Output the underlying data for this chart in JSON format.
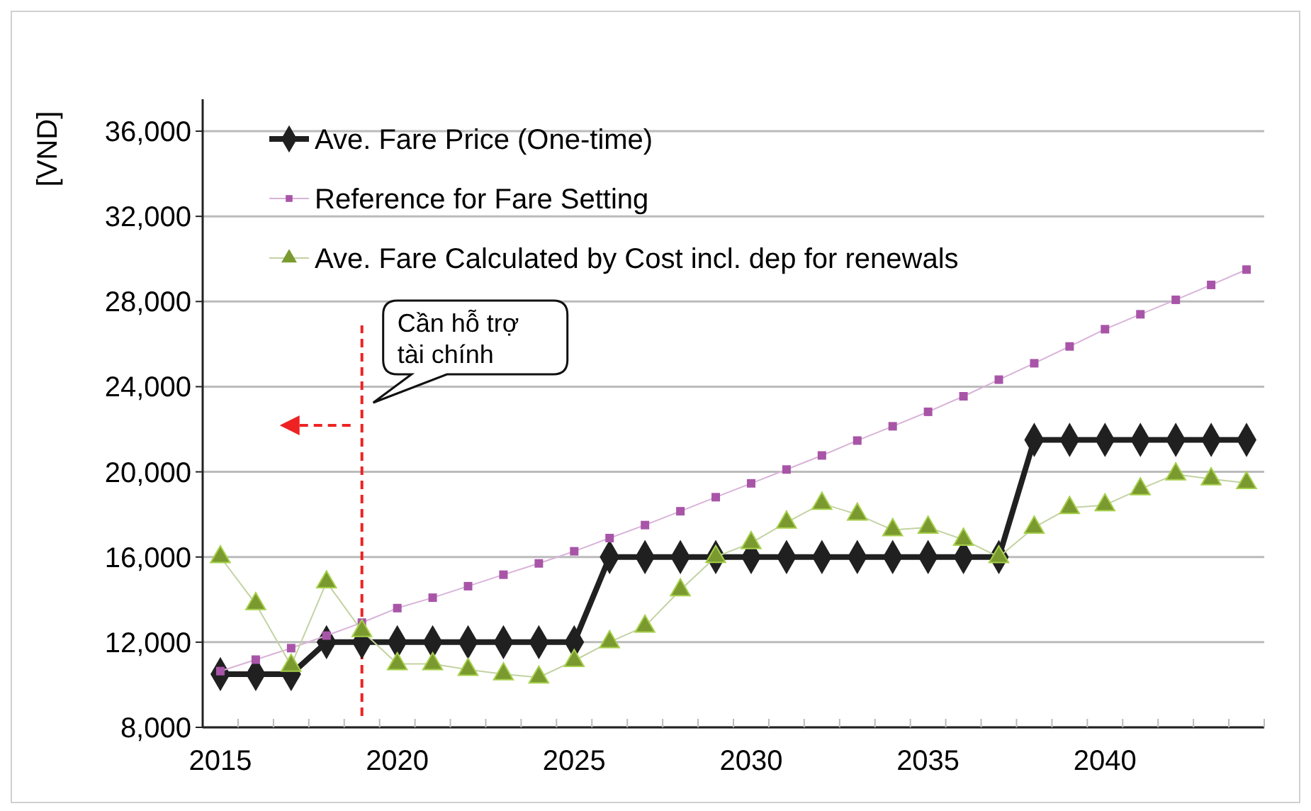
{
  "chart_data": {
    "type": "line",
    "ylabel": "[VND]",
    "x": [
      2015,
      2016,
      2017,
      2018,
      2019,
      2020,
      2021,
      2022,
      2023,
      2024,
      2025,
      2026,
      2027,
      2028,
      2029,
      2030,
      2031,
      2032,
      2033,
      2034,
      2035,
      2036,
      2037,
      2038,
      2039,
      2040,
      2041,
      2042,
      2043,
      2044
    ],
    "xlim": [
      2014.5,
      2044.5
    ],
    "xticks": [
      2015,
      2020,
      2025,
      2030,
      2035,
      2040
    ],
    "ylim": [
      8000,
      37500
    ],
    "yticks": [
      {
        "value": 8000,
        "label": "8,000"
      },
      {
        "value": 12000,
        "label": "12,000"
      },
      {
        "value": 16000,
        "label": "16,000"
      },
      {
        "value": 20000,
        "label": "20,000"
      },
      {
        "value": 24000,
        "label": "24,000"
      },
      {
        "value": 28000,
        "label": "28,000"
      },
      {
        "value": 32000,
        "label": "32,000"
      },
      {
        "value": 36000,
        "label": "36,000"
      }
    ],
    "grid": "y",
    "legend": "top left",
    "series": [
      {
        "name": "Ave. Fare Price (One-time)",
        "color": "#202020",
        "marker": "diamond",
        "values": [
          10500,
          10500,
          10500,
          12000,
          12000,
          12000,
          12000,
          12000,
          12000,
          12000,
          12000,
          16000,
          16000,
          16000,
          16000,
          16000,
          16000,
          16000,
          16000,
          16000,
          16000,
          16000,
          16000,
          21500,
          21500,
          21500,
          21500,
          21500,
          21500,
          21500
        ]
      },
      {
        "name": "Reference for Fare Setting",
        "color": "#a855a8",
        "marker": "square",
        "values": [
          10640,
          11180,
          11720,
          12310,
          12920,
          13600,
          14090,
          14630,
          15170,
          15700,
          16270,
          16890,
          17500,
          18150,
          18810,
          19460,
          20110,
          20770,
          21470,
          22140,
          22820,
          23550,
          24330,
          25100,
          25890,
          26700,
          27400,
          28080,
          28780,
          29500
        ]
      },
      {
        "name": "Ave. Fare Calculated by Cost incl. dep for renewals",
        "color": "#7a9a30",
        "marker": "triangle",
        "values": [
          16000,
          13800,
          10900,
          14820,
          12530,
          10980,
          10980,
          10710,
          10500,
          10350,
          11130,
          12010,
          12740,
          14450,
          16010,
          16660,
          17630,
          18510,
          18000,
          17270,
          17390,
          16820,
          16000,
          17390,
          18310,
          18440,
          19190,
          19890,
          19660,
          19480
        ]
      }
    ],
    "ref_lines": [
      {
        "axis": "x",
        "value": 2019,
        "color": "#ee2222",
        "line_style": "dashed"
      }
    ],
    "annotations": [
      "Cần hỗ trợ tài chính"
    ]
  }
}
